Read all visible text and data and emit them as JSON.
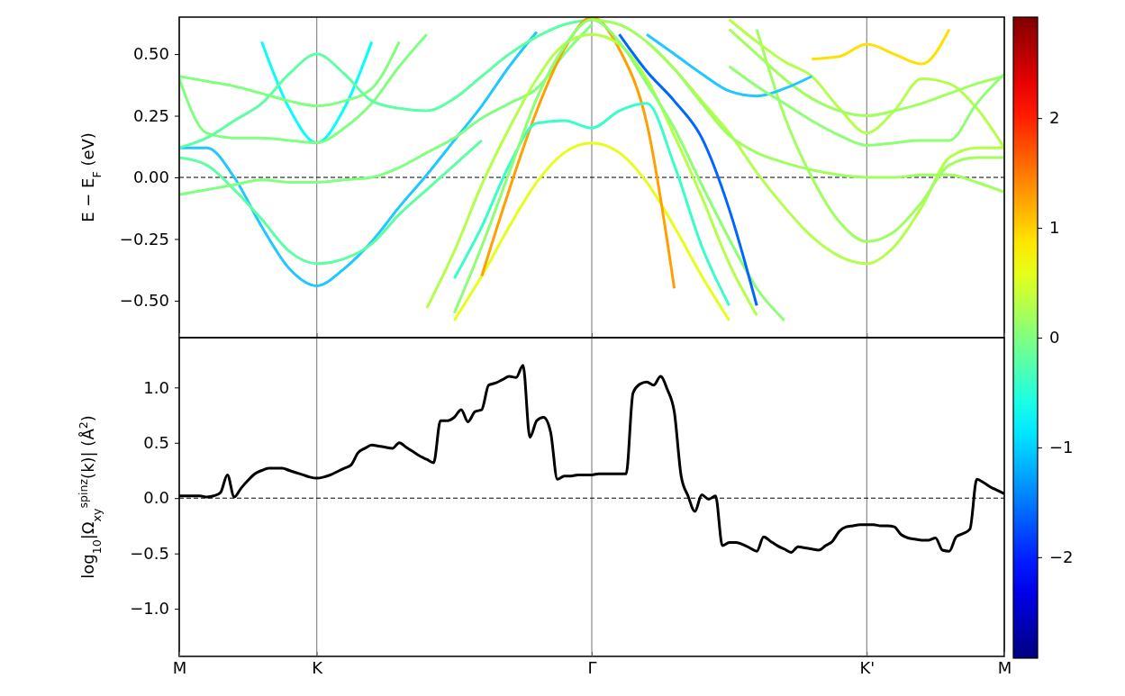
{
  "chart_data": [
    {
      "type": "line",
      "ylabel": "E − E$_{F}$ (eV)",
      "categories": [
        "M",
        null,
        null,
        null,
        null,
        "K",
        null,
        null,
        null,
        null,
        null,
        null,
        null,
        null,
        null,
        "Γ",
        null,
        null,
        null,
        null,
        null,
        null,
        null,
        null,
        null,
        "K'",
        null,
        null,
        null,
        null,
        "M"
      ],
      "ylim": [
        -0.65,
        0.65
      ],
      "yticks": [
        {
          "value": -0.5,
          "label": "−0.50"
        },
        {
          "value": -0.25,
          "label": "−0.25"
        },
        {
          "value": 0,
          "label": "0.00"
        },
        {
          "value": 0.25,
          "label": "0.25"
        },
        {
          "value": 0.5,
          "label": "0.50"
        }
      ],
      "tick_labels": "y",
      "grid": "x",
      "ref_lines": [
        {
          "axis": "y",
          "value": 0,
          "line_style": "dashed",
          "color": "#000000"
        }
      ],
      "clim": [
        -2.92,
        2.92
      ],
      "cticks": [
        {
          "value": -2,
          "label": "−2"
        },
        {
          "value": -1,
          "label": "−1"
        },
        {
          "value": 0,
          "label": "0"
        },
        {
          "value": 1,
          "label": "1"
        },
        {
          "value": 2,
          "label": "2"
        }
      ],
      "series": [
        {
          "color": "#20c8ff",
          "values": [
            0.12,
            0.12,
            0.0,
            -0.2,
            -0.37,
            -0.44,
            -0.37,
            -0.26,
            -0.12,
            0.01,
            0.15,
            0.29,
            0.45,
            0.59,
            null,
            null,
            null,
            null,
            null,
            null,
            null,
            null,
            null,
            null,
            null,
            null,
            null,
            null,
            null,
            null,
            null
          ]
        },
        {
          "color": "#5cffa3",
          "values": [
            0.08,
            0.05,
            -0.05,
            -0.17,
            -0.3,
            -0.35,
            -0.33,
            -0.27,
            -0.15,
            -0.05,
            0.05,
            0.15,
            null,
            null,
            null,
            null,
            null,
            null,
            null,
            null,
            null,
            null,
            null,
            null,
            null,
            null,
            null,
            null,
            null,
            null,
            null
          ]
        },
        {
          "color": "#80ff80",
          "values": [
            -0.07,
            -0.05,
            -0.03,
            -0.01,
            -0.02,
            -0.02,
            -0.01,
            0.0,
            0.04,
            0.1,
            0.16,
            0.24,
            0.3,
            0.36,
            0.5,
            0.62,
            null,
            null,
            null,
            null,
            null,
            null,
            null,
            null,
            null,
            null,
            null,
            null,
            null,
            null,
            null
          ]
        },
        {
          "color": "#05fffa",
          "values": [
            null,
            null,
            null,
            0.55,
            0.28,
            0.14,
            0.28,
            0.55,
            null,
            null,
            null,
            null,
            null,
            null,
            null,
            null,
            null,
            null,
            null,
            null,
            null,
            null,
            null,
            null,
            null,
            null,
            null,
            null,
            null,
            null,
            null
          ]
        },
        {
          "color": "#80ff80",
          "values": [
            0.4,
            0.18,
            0.16,
            0.16,
            0.15,
            0.14,
            0.2,
            0.3,
            0.45,
            0.58,
            null,
            null,
            null,
            null,
            null,
            null,
            null,
            null,
            null,
            null,
            null,
            null,
            null,
            null,
            null,
            null,
            null,
            null,
            null,
            null,
            null
          ]
        },
        {
          "color": "#5cffa3",
          "values": [
            0.12,
            0.16,
            0.23,
            0.3,
            0.42,
            0.5,
            0.42,
            0.31,
            0.28,
            0.27,
            0.32,
            0.41,
            0.5,
            0.57,
            0.62,
            0.64,
            null,
            null,
            null,
            null,
            null,
            null,
            null,
            null,
            null,
            null,
            null,
            null,
            null,
            null,
            null
          ]
        },
        {
          "color": "#80ff80",
          "values": [
            0.41,
            0.39,
            0.37,
            0.34,
            0.31,
            0.29,
            0.31,
            0.36,
            0.55,
            null,
            null,
            null,
            null,
            null,
            null,
            null,
            null,
            null,
            null,
            null,
            null,
            null,
            null,
            null,
            null,
            null,
            null,
            null,
            null,
            null,
            null
          ]
        },
        {
          "color": "#e6ff1a",
          "values": [
            null,
            null,
            null,
            null,
            null,
            null,
            null,
            null,
            null,
            null,
            -0.58,
            -0.4,
            -0.2,
            -0.02,
            0.1,
            0.14,
            0.1,
            -0.02,
            -0.2,
            -0.4,
            -0.58,
            null,
            null,
            null,
            null,
            null,
            null,
            null,
            null,
            null,
            null
          ]
        },
        {
          "color": "#ffa000",
          "values": [
            null,
            null,
            null,
            null,
            null,
            null,
            null,
            null,
            null,
            null,
            null,
            -0.4,
            -0.05,
            0.27,
            0.52,
            0.65,
            0.52,
            0.22,
            -0.45,
            null,
            null,
            null,
            null,
            null,
            null,
            null,
            null,
            null,
            null,
            null,
            null
          ]
        },
        {
          "color": "#38ffc7",
          "values": [
            null,
            null,
            null,
            null,
            null,
            null,
            null,
            null,
            null,
            null,
            -0.41,
            -0.2,
            0.05,
            0.22,
            0.23,
            0.2,
            0.27,
            0.3,
            0.05,
            -0.28,
            -0.52,
            null,
            null,
            null,
            null,
            null,
            null,
            null,
            null,
            null,
            null
          ]
        },
        {
          "color": "#b3ff4a",
          "values": [
            null,
            null,
            null,
            null,
            null,
            null,
            null,
            null,
            null,
            -0.53,
            -0.3,
            -0.03,
            0.2,
            0.4,
            0.54,
            0.58,
            0.54,
            0.4,
            0.17,
            -0.08,
            -0.35,
            -0.56,
            null,
            null,
            null,
            null,
            null,
            null,
            null,
            null,
            null
          ]
        },
        {
          "color": "#8cff73",
          "values": [
            null,
            null,
            null,
            null,
            null,
            null,
            null,
            null,
            null,
            null,
            -0.55,
            -0.28,
            0.02,
            0.32,
            0.53,
            0.64,
            0.55,
            0.38,
            0.2,
            -0.03,
            -0.25,
            -0.45,
            -0.58,
            null,
            null,
            null,
            null,
            null,
            null,
            null,
            null
          ]
        },
        {
          "color": "#b3ff4a",
          "values": [
            null,
            null,
            null,
            null,
            null,
            null,
            null,
            null,
            null,
            null,
            null,
            null,
            null,
            null,
            null,
            null,
            null,
            0.55,
            0.44,
            0.31,
            0.18,
            0.02,
            -0.12,
            -0.24,
            -0.32,
            -0.35,
            -0.28,
            -0.12,
            0.08,
            0.12,
            0.12
          ]
        },
        {
          "color": "#a0ff5f",
          "values": [
            null,
            null,
            null,
            null,
            null,
            null,
            null,
            null,
            null,
            null,
            null,
            null,
            null,
            null,
            null,
            null,
            null,
            null,
            null,
            null,
            null,
            0.6,
            0.25,
            0.0,
            -0.18,
            -0.26,
            -0.22,
            -0.1,
            0.05,
            0.08,
            0.08
          ]
        },
        {
          "color": "#a0ff5f",
          "values": [
            null,
            null,
            null,
            null,
            null,
            null,
            null,
            null,
            null,
            null,
            null,
            null,
            null,
            null,
            null,
            0.64,
            0.62,
            0.55,
            0.44,
            0.3,
            0.17,
            0.1,
            0.06,
            0.03,
            0.01,
            0,
            0.0,
            0.01,
            0.01,
            -0.02,
            -0.06
          ]
        },
        {
          "color": "#ffe000",
          "values": [
            null,
            null,
            null,
            null,
            null,
            null,
            null,
            null,
            null,
            null,
            null,
            null,
            null,
            null,
            null,
            null,
            null,
            null,
            null,
            null,
            null,
            null,
            null,
            0.48,
            0.49,
            0.54,
            0.5,
            0.46,
            0.6,
            null,
            null
          ]
        },
        {
          "color": "#b3ff4a",
          "values": [
            null,
            null,
            null,
            null,
            null,
            null,
            null,
            null,
            null,
            null,
            null,
            null,
            null,
            null,
            null,
            null,
            null,
            null,
            null,
            null,
            0.64,
            0.55,
            0.47,
            0.41,
            0.28,
            0.18,
            0.27,
            0.4,
            0.38,
            0.28,
            0.12
          ]
        },
        {
          "color": "#a0ff5f",
          "values": [
            null,
            null,
            null,
            null,
            null,
            null,
            null,
            null,
            null,
            null,
            null,
            null,
            null,
            null,
            null,
            null,
            null,
            null,
            null,
            null,
            0.6,
            0.5,
            0.4,
            0.32,
            0.27,
            0.25,
            0.27,
            0.3,
            0.34,
            0.38,
            0.41
          ]
        },
        {
          "color": "#20c8ff",
          "values": [
            null,
            null,
            null,
            null,
            null,
            null,
            null,
            null,
            null,
            null,
            null,
            null,
            null,
            null,
            null,
            null,
            null,
            0.58,
            0.5,
            0.42,
            0.35,
            0.33,
            0.36,
            0.41,
            null,
            null,
            null,
            null,
            null,
            null,
            null
          ]
        },
        {
          "color": "#8cff73",
          "values": [
            null,
            null,
            null,
            null,
            null,
            null,
            null,
            null,
            null,
            null,
            null,
            null,
            null,
            null,
            null,
            null,
            null,
            null,
            null,
            null,
            0.45,
            0.37,
            0.3,
            0.23,
            0.17,
            0.13,
            0.14,
            0.15,
            0.15,
            0.3,
            0.42
          ]
        },
        {
          "color": "#0066ff",
          "values": [
            null,
            null,
            null,
            null,
            null,
            null,
            null,
            null,
            null,
            null,
            null,
            null,
            null,
            null,
            null,
            null,
            0.58,
            0.43,
            0.31,
            0.16,
            -0.13,
            -0.52,
            null,
            null,
            null,
            null,
            null,
            null,
            null,
            null,
            null
          ]
        }
      ]
    },
    {
      "type": "line",
      "ylabel": "log$_{10}$|Ω$_{xy}$$^{spinz}$(k)|  (Å$^{2}$)",
      "categories": [
        "M",
        null,
        null,
        null,
        null,
        null,
        null,
        null,
        null,
        null,
        null,
        null,
        null,
        null,
        null,
        null,
        null,
        null,
        null,
        null,
        "K",
        null,
        null,
        null,
        null,
        null,
        null,
        null,
        null,
        null,
        null,
        null,
        null,
        null,
        null,
        null,
        null,
        null,
        null,
        null,
        null,
        null,
        null,
        null,
        null,
        null,
        null,
        null,
        null,
        null,
        null,
        null,
        null,
        null,
        null,
        null,
        null,
        null,
        null,
        null,
        "Γ",
        null,
        null,
        null,
        null,
        null,
        null,
        null,
        null,
        null,
        null,
        null,
        null,
        null,
        null,
        null,
        null,
        null,
        null,
        null,
        null,
        null,
        null,
        null,
        null,
        null,
        null,
        null,
        null,
        null,
        null,
        null,
        null,
        null,
        null,
        null,
        null,
        null,
        null,
        null,
        "K'",
        null,
        null,
        null,
        null,
        null,
        null,
        null,
        null,
        null,
        null,
        null,
        null,
        null,
        null,
        null,
        null,
        null,
        null,
        null,
        "M"
      ],
      "ylim": [
        -1.43,
        1.45
      ],
      "yticks": [
        {
          "value": -1,
          "label": "−1.0"
        },
        {
          "value": -0.5,
          "label": "−0.5"
        },
        {
          "value": 0,
          "label": "0.0"
        },
        {
          "value": 0.5,
          "label": "0.5"
        },
        {
          "value": 1,
          "label": "1.0"
        }
      ],
      "grid": "x",
      "ref_lines": [
        {
          "axis": "y",
          "value": 0,
          "line_style": "dashed",
          "color": "#000000"
        }
      ],
      "series": [
        {
          "color": "#000000",
          "values": [
            0.02,
            0.02,
            0.02,
            0.02,
            0.01,
            0.02,
            0.05,
            0.21,
            0.01,
            0.09,
            0.16,
            0.22,
            0.25,
            0.27,
            0.27,
            0.27,
            0.25,
            0.23,
            0.21,
            0.19,
            0.18,
            0.19,
            0.21,
            0.24,
            0.27,
            0.3,
            0.41,
            0.45,
            0.48,
            0.47,
            0.46,
            0.45,
            0.5,
            0.46,
            0.42,
            0.38,
            0.35,
            0.32,
            0.7,
            0.7,
            0.73,
            0.8,
            0.69,
            0.78,
            0.8,
            1.02,
            1.04,
            1.07,
            1.1,
            1.09,
            1.2,
            0.55,
            0.7,
            0.73,
            0.6,
            0.17,
            0.2,
            0.2,
            0.21,
            0.21,
            0.21,
            0.22,
            0.22,
            0.22,
            0.22,
            0.22,
            0.95,
            1.03,
            1.05,
            1.02,
            1.1,
            0.98,
            0.78,
            0.2,
            0.02,
            -0.12,
            0.03,
            -0.01,
            0.02,
            -0.43,
            -0.4,
            -0.4,
            -0.42,
            -0.45,
            -0.48,
            -0.35,
            -0.39,
            -0.43,
            -0.46,
            -0.49,
            -0.44,
            -0.45,
            -0.46,
            -0.47,
            -0.43,
            -0.39,
            -0.3,
            -0.26,
            -0.25,
            -0.24,
            -0.24,
            -0.24,
            -0.25,
            -0.25,
            -0.26,
            -0.33,
            -0.36,
            -0.37,
            -0.38,
            -0.38,
            -0.36,
            -0.47,
            -0.48,
            -0.35,
            -0.32,
            -0.28,
            0.17,
            0.14,
            0.1,
            0.07,
            0.04
          ]
        }
      ]
    }
  ]
}
